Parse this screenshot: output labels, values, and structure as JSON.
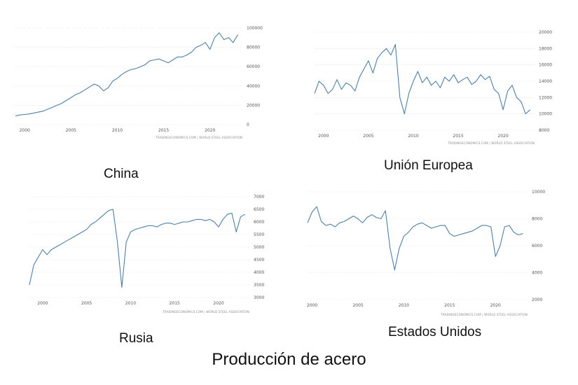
{
  "title": "Producción de acero",
  "colors": {
    "series": "#4f7fa7",
    "grid": "#e4e4e4"
  },
  "source_text": "TRADINGECONOMICS.COM | WORLD STEEL ASSOCIATION",
  "chart_data": [
    {
      "type": "line",
      "label": "China",
      "xlim": [
        1999,
        2023.5
      ],
      "ylim": [
        0,
        100000
      ],
      "xticks": [
        "2000",
        "2005",
        "2010",
        "2015",
        "2020"
      ],
      "yticks": [
        "0",
        "20000",
        "40000",
        "60000",
        "80000",
        "100000"
      ],
      "x": [
        1999,
        1999.5,
        2000,
        2000.5,
        2001,
        2001.5,
        2002,
        2002.5,
        2003,
        2003.5,
        2004,
        2004.5,
        2005,
        2005.5,
        2006,
        2006.5,
        2007,
        2007.5,
        2008,
        2008.5,
        2009,
        2009.5,
        2010,
        2010.5,
        2011,
        2011.5,
        2012,
        2012.5,
        2013,
        2013.5,
        2014,
        2014.5,
        2015,
        2015.5,
        2016,
        2016.5,
        2017,
        2017.5,
        2018,
        2018.5,
        2019,
        2019.5,
        2020,
        2020.5,
        2021,
        2021.5,
        2022,
        2022.5,
        2023
      ],
      "y": [
        9000,
        10000,
        10500,
        11000,
        12000,
        13000,
        14000,
        16000,
        18000,
        20000,
        22000,
        25000,
        28000,
        31000,
        33000,
        36000,
        39000,
        42000,
        40000,
        35000,
        38000,
        45000,
        48000,
        52000,
        55000,
        57000,
        58000,
        60000,
        62000,
        66000,
        67000,
        68000,
        66000,
        64000,
        67000,
        70000,
        70000,
        72000,
        75000,
        80000,
        82000,
        85000,
        78000,
        90000,
        95000,
        88000,
        90000,
        85000,
        93000
      ]
    },
    {
      "type": "line",
      "label": "Unión Europea",
      "xlim": [
        1999,
        2023.5
      ],
      "ylim": [
        8000,
        20000
      ],
      "xticks": [
        "2000",
        "2005",
        "2010",
        "2015",
        "2020"
      ],
      "yticks": [
        "8000",
        "10000",
        "12000",
        "14000",
        "16000",
        "18000",
        "20000"
      ],
      "x": [
        1999,
        1999.5,
        2000,
        2000.5,
        2001,
        2001.5,
        2002,
        2002.5,
        2003,
        2003.5,
        2004,
        2004.5,
        2005,
        2005.5,
        2006,
        2006.5,
        2007,
        2007.5,
        2008,
        2008.5,
        2009,
        2009.5,
        2010,
        2010.5,
        2011,
        2011.5,
        2012,
        2012.5,
        2013,
        2013.5,
        2014,
        2014.5,
        2015,
        2015.5,
        2016,
        2016.5,
        2017,
        2017.5,
        2018,
        2018.5,
        2019,
        2019.5,
        2020,
        2020.5,
        2021,
        2021.5,
        2022,
        2022.5,
        2023
      ],
      "y": [
        12500,
        14000,
        13500,
        12500,
        13000,
        14200,
        13000,
        13800,
        13500,
        12800,
        14500,
        15500,
        16500,
        15000,
        16800,
        17500,
        18000,
        17200,
        18500,
        12000,
        10000,
        12500,
        14000,
        15200,
        13800,
        14500,
        13500,
        14000,
        13200,
        14500,
        14000,
        14800,
        13800,
        14200,
        14500,
        13600,
        14000,
        14800,
        14200,
        14600,
        13000,
        12500,
        10500,
        12800,
        13500,
        12000,
        11500,
        10000,
        10500
      ]
    },
    {
      "type": "line",
      "label": "Rusia",
      "xlim": [
        1998.5,
        2023.5
      ],
      "ylim": [
        3000,
        7000
      ],
      "xticks": [
        "2000",
        "2005",
        "2010",
        "2015",
        "2020"
      ],
      "yticks": [
        "3000",
        "3500",
        "4000",
        "4500",
        "5000",
        "5500",
        "6000",
        "6500",
        "7000"
      ],
      "x": [
        1998.5,
        1999,
        1999.5,
        2000,
        2000.5,
        2001,
        2001.5,
        2002,
        2002.5,
        2003,
        2003.5,
        2004,
        2004.5,
        2005,
        2005.5,
        2006,
        2006.5,
        2007,
        2007.5,
        2008,
        2008.5,
        2009,
        2009.5,
        2010,
        2010.5,
        2011,
        2011.5,
        2012,
        2012.5,
        2013,
        2013.5,
        2014,
        2014.5,
        2015,
        2015.5,
        2016,
        2016.5,
        2017,
        2017.5,
        2018,
        2018.5,
        2019,
        2019.5,
        2020,
        2020.5,
        2021,
        2021.5,
        2022,
        2022.5,
        2023
      ],
      "y": [
        3500,
        4300,
        4600,
        4900,
        4700,
        4900,
        5000,
        5100,
        5200,
        5300,
        5400,
        5500,
        5600,
        5700,
        5900,
        6000,
        6150,
        6300,
        6450,
        6500,
        5200,
        3400,
        5200,
        5600,
        5700,
        5750,
        5800,
        5850,
        5850,
        5800,
        5900,
        5950,
        5950,
        5900,
        5950,
        6000,
        6000,
        6050,
        6100,
        6100,
        6050,
        6100,
        6000,
        5800,
        6100,
        6300,
        6350,
        5600,
        6200,
        6300
      ]
    },
    {
      "type": "line",
      "label": "Estados Unidos",
      "xlim": [
        1999.5,
        2023.5
      ],
      "ylim": [
        2000,
        10000
      ],
      "xticks": [
        "2000",
        "2005",
        "2010",
        "2015",
        "2020"
      ],
      "yticks": [
        "2000",
        "4000",
        "6000",
        "8000",
        "10000"
      ],
      "x": [
        1999.5,
        2000,
        2000.5,
        2001,
        2001.5,
        2002,
        2002.5,
        2003,
        2003.5,
        2004,
        2004.5,
        2005,
        2005.5,
        2006,
        2006.5,
        2007,
        2007.5,
        2008,
        2008.5,
        2009,
        2009.5,
        2010,
        2010.5,
        2011,
        2011.5,
        2012,
        2012.5,
        2013,
        2013.5,
        2014,
        2014.5,
        2015,
        2015.5,
        2016,
        2016.5,
        2017,
        2017.5,
        2018,
        2018.5,
        2019,
        2019.5,
        2020,
        2020.5,
        2021,
        2021.5,
        2022,
        2022.5,
        2023
      ],
      "y": [
        7700,
        8500,
        8900,
        7800,
        7500,
        7600,
        7400,
        7700,
        7800,
        8000,
        8200,
        8000,
        7700,
        8100,
        8300,
        8100,
        8000,
        8600,
        5800,
        4200,
        5800,
        6700,
        7000,
        7400,
        7600,
        7700,
        7500,
        7300,
        7400,
        7500,
        7500,
        6900,
        6700,
        6800,
        6900,
        7000,
        7100,
        7300,
        7500,
        7500,
        7400,
        5200,
        6000,
        7400,
        7500,
        7000,
        6800,
        6900
      ]
    }
  ]
}
